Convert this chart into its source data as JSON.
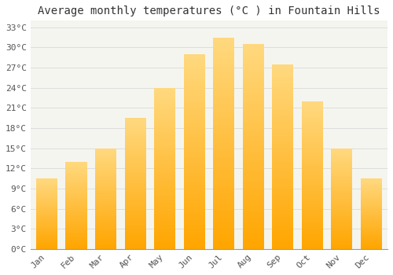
{
  "title": "Average monthly temperatures (°C ) in Fountain Hills",
  "months": [
    "Jan",
    "Feb",
    "Mar",
    "Apr",
    "May",
    "Jun",
    "Jul",
    "Aug",
    "Sep",
    "Oct",
    "Nov",
    "Dec"
  ],
  "values": [
    10.5,
    13.0,
    15.0,
    19.5,
    24.0,
    29.0,
    31.5,
    30.5,
    27.5,
    22.0,
    15.0,
    10.5
  ],
  "bar_color_bottom": "#FFA500",
  "bar_color_top": "#FFD980",
  "ylim": [
    0,
    34
  ],
  "yticks": [
    0,
    3,
    6,
    9,
    12,
    15,
    18,
    21,
    24,
    27,
    30,
    33
  ],
  "ytick_labels": [
    "0°C",
    "3°C",
    "6°C",
    "9°C",
    "12°C",
    "15°C",
    "18°C",
    "21°C",
    "24°C",
    "27°C",
    "30°C",
    "33°C"
  ],
  "background_color": "#ffffff",
  "plot_bg_color": "#f5f5f0",
  "grid_color": "#dddddd",
  "title_fontsize": 10,
  "tick_fontsize": 8,
  "bar_width": 0.72
}
